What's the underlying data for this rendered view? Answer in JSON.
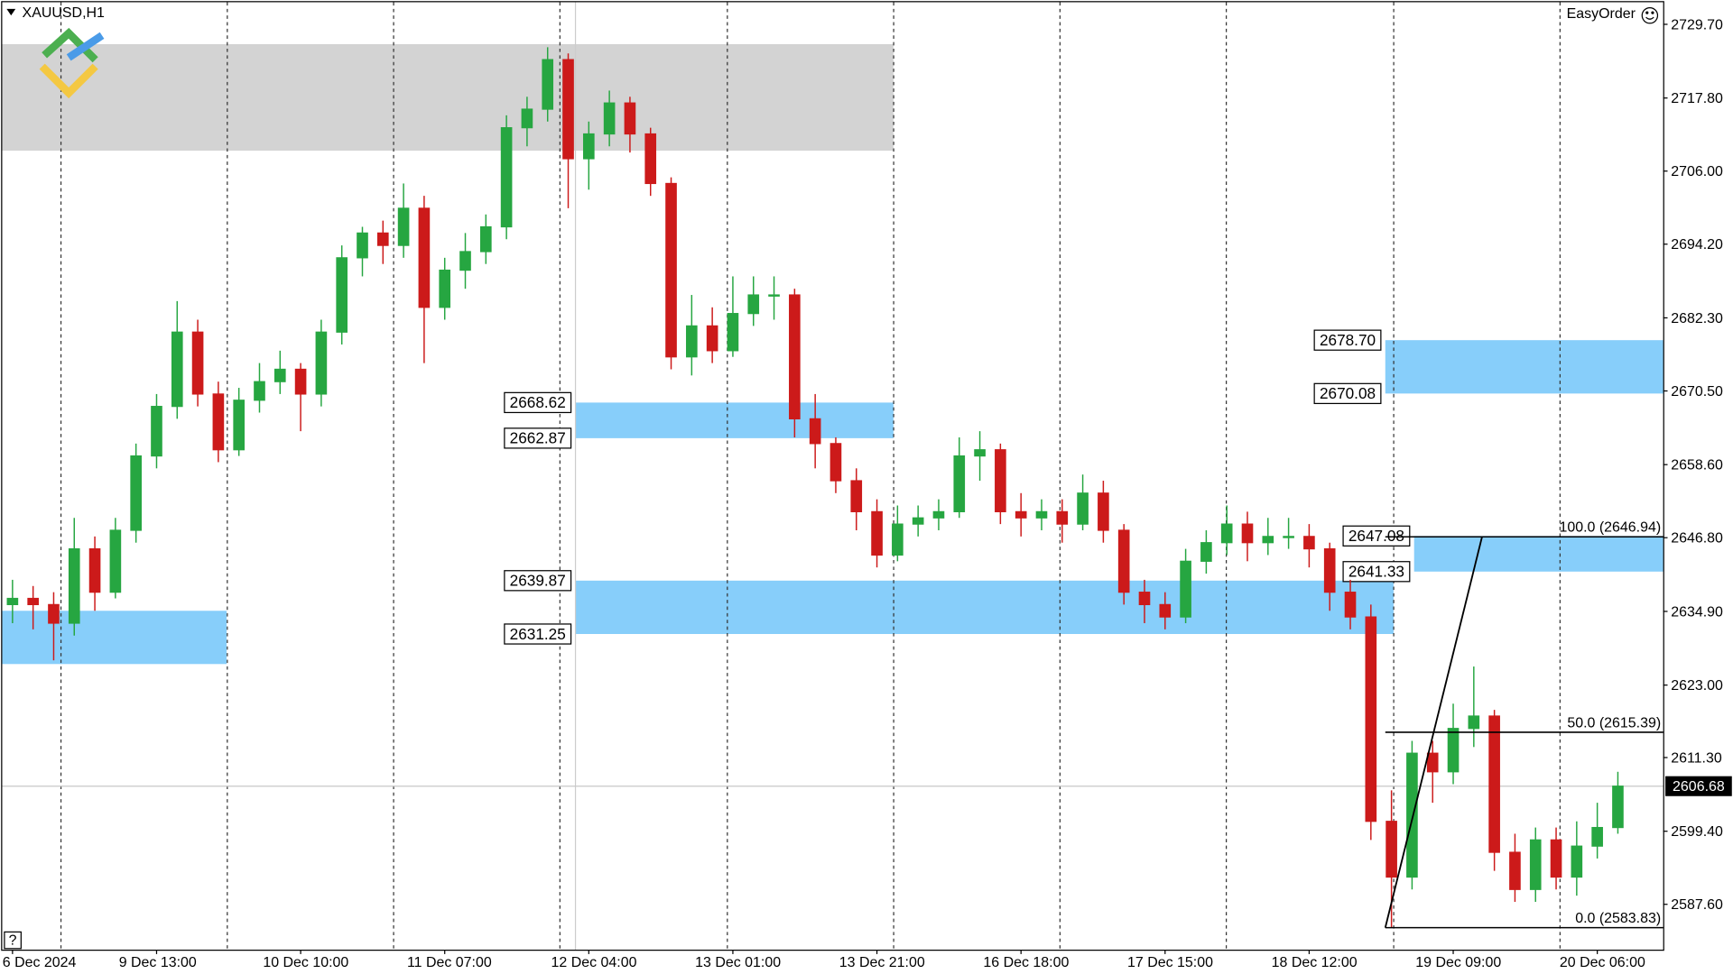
{
  "chart_data": {
    "type": "candlestick",
    "symbol": "XAUUSD,H1",
    "plugin": "EasyOrder",
    "help": "?",
    "up_color": "#26a641",
    "down_color": "#cc1a1a",
    "candles": [
      [
        2636,
        2640,
        2633,
        2637
      ],
      [
        2637,
        2639,
        2632,
        2636
      ],
      [
        2636,
        2638,
        2627,
        2633
      ],
      [
        2633,
        2650,
        2631,
        2645
      ],
      [
        2645,
        2647,
        2635,
        2638
      ],
      [
        2638,
        2650,
        2637,
        2648
      ],
      [
        2648,
        2662,
        2646,
        2660
      ],
      [
        2660,
        2670,
        2658,
        2668
      ],
      [
        2668,
        2685,
        2666,
        2680
      ],
      [
        2680,
        2682,
        2668,
        2670
      ],
      [
        2670,
        2672,
        2659,
        2661
      ],
      [
        2661,
        2671,
        2660,
        2669
      ],
      [
        2669,
        2675,
        2667,
        2672
      ],
      [
        2672,
        2677,
        2670,
        2674
      ],
      [
        2674,
        2675,
        2664,
        2670
      ],
      [
        2670,
        2682,
        2668,
        2680
      ],
      [
        2680,
        2694,
        2678,
        2692
      ],
      [
        2692,
        2697,
        2689,
        2696
      ],
      [
        2696,
        2698,
        2691,
        2694
      ],
      [
        2694,
        2704,
        2692,
        2700
      ],
      [
        2700,
        2702,
        2675,
        2684
      ],
      [
        2684,
        2692,
        2682,
        2690
      ],
      [
        2690,
        2696,
        2687,
        2693
      ],
      [
        2693,
        2699,
        2691,
        2697
      ],
      [
        2697,
        2715,
        2695,
        2713
      ],
      [
        2713,
        2718,
        2710,
        2716
      ],
      [
        2716,
        2726,
        2714,
        2724
      ],
      [
        2724,
        2725,
        2700,
        2708
      ],
      [
        2708,
        2714,
        2703,
        2712
      ],
      [
        2712,
        2719,
        2710,
        2717
      ],
      [
        2717,
        2718,
        2709,
        2712
      ],
      [
        2712,
        2713,
        2702,
        2704
      ],
      [
        2704,
        2705,
        2674,
        2676
      ],
      [
        2676,
        2686,
        2673,
        2681
      ],
      [
        2681,
        2684,
        2675,
        2677
      ],
      [
        2677,
        2689,
        2676,
        2683
      ],
      [
        2683,
        2689,
        2681,
        2686
      ],
      [
        2686,
        2689,
        2682,
        2686
      ],
      [
        2686,
        2687,
        2663,
        2666
      ],
      [
        2666,
        2670,
        2658,
        2662
      ],
      [
        2662,
        2663,
        2654,
        2656
      ],
      [
        2656,
        2658,
        2648,
        2651
      ],
      [
        2651,
        2653,
        2642,
        2644
      ],
      [
        2644,
        2652,
        2643,
        2649
      ],
      [
        2649,
        2652,
        2647,
        2650
      ],
      [
        2650,
        2653,
        2648,
        2651
      ],
      [
        2651,
        2663,
        2650,
        2660
      ],
      [
        2660,
        2664,
        2656,
        2661
      ],
      [
        2661,
        2662,
        2649,
        2651
      ],
      [
        2651,
        2654,
        2647,
        2650
      ],
      [
        2650,
        2653,
        2648,
        2651
      ],
      [
        2651,
        2653,
        2646,
        2649
      ],
      [
        2649,
        2657,
        2648,
        2654
      ],
      [
        2654,
        2656,
        2646,
        2648
      ],
      [
        2648,
        2649,
        2636,
        2638
      ],
      [
        2638,
        2640,
        2633,
        2636
      ],
      [
        2636,
        2638,
        2632,
        2634
      ],
      [
        2634,
        2645,
        2633,
        2643
      ],
      [
        2643,
        2648,
        2641,
        2646
      ],
      [
        2646,
        2652,
        2644,
        2649
      ],
      [
        2649,
        2651,
        2643,
        2646
      ],
      [
        2646,
        2650,
        2644,
        2647
      ],
      [
        2647,
        2650,
        2645,
        2647
      ],
      [
        2647,
        2649,
        2642,
        2645
      ],
      [
        2645,
        2646,
        2635,
        2638
      ],
      [
        2638,
        2640,
        2632,
        2634
      ],
      [
        2634,
        2636,
        2598,
        2601
      ],
      [
        2601,
        2606,
        2583.83,
        2592
      ],
      [
        2592,
        2614,
        2590,
        2612
      ],
      [
        2612,
        2614,
        2604,
        2609
      ],
      [
        2609,
        2620,
        2607,
        2616
      ],
      [
        2616,
        2626,
        2613,
        2618
      ],
      [
        2618,
        2619,
        2593,
        2596
      ],
      [
        2596,
        2599,
        2588,
        2590
      ],
      [
        2590,
        2600,
        2588,
        2598
      ],
      [
        2598,
        2600,
        2590,
        2592
      ],
      [
        2592,
        2601,
        2589,
        2597
      ],
      [
        2597,
        2604,
        2595,
        2600
      ],
      [
        2600,
        2609,
        2599,
        2606.68
      ]
    ],
    "ylim": [
      2580.28,
      2733.27
    ],
    "yticks": [
      {
        "value": 2729.7,
        "label": "2729.70"
      },
      {
        "value": 2717.8,
        "label": "2717.80"
      },
      {
        "value": 2706,
        "label": "2706.00"
      },
      {
        "value": 2694.2,
        "label": "2694.20"
      },
      {
        "value": 2682.3,
        "label": "2682.30"
      },
      {
        "value": 2670.5,
        "label": "2670.50"
      },
      {
        "value": 2658.6,
        "label": "2658.60"
      },
      {
        "value": 2646.8,
        "label": "2646.80"
      },
      {
        "value": 2634.9,
        "label": "2634.90"
      },
      {
        "value": 2623,
        "label": "2623.00"
      },
      {
        "value": 2611.3,
        "label": "2611.30"
      },
      {
        "value": 2599.4,
        "label": "2599.40"
      },
      {
        "value": 2587.6,
        "label": "2587.60"
      }
    ],
    "xlim": [
      -0.5,
      80.2
    ],
    "xticks": [
      {
        "value": 0,
        "label": "6 Dec 2024"
      },
      {
        "value": 7,
        "label": "9 Dec 13:00"
      },
      {
        "value": 14,
        "label": "10 Dec 10:00"
      },
      {
        "value": 21,
        "label": "11 Dec 07:00"
      },
      {
        "value": 28,
        "label": "12 Dec 04:00"
      },
      {
        "value": 35,
        "label": "13 Dec 01:00"
      },
      {
        "value": 42,
        "label": "13 Dec 21:00"
      },
      {
        "value": 49,
        "label": "16 Dec 18:00"
      },
      {
        "value": 56,
        "label": "17 Dec 15:00"
      },
      {
        "value": 63,
        "label": "18 Dec 12:00"
      },
      {
        "value": 70,
        "label": "19 Dec 09:00"
      },
      {
        "value": 77,
        "label": "20 Dec 06:00"
      }
    ],
    "last_price": 2606.68,
    "zones": [
      {
        "high": 2726.5,
        "low": 2709.3,
        "from": -0.5,
        "to": 42.8,
        "color": "#d3d3d3"
      },
      {
        "high": 2635,
        "low": 2626.4,
        "from": -0.5,
        "to": 10.4,
        "color": "#87cefa"
      },
      {
        "high": 2668.62,
        "low": 2662.87,
        "from": 27.35,
        "to": 42.8,
        "color": "#87cefa"
      },
      {
        "high": 2639.87,
        "low": 2631.25,
        "from": 27.35,
        "to": 67.1,
        "color": "#87cefa"
      },
      {
        "high": {
          "value": 2678.7,
          "label": "2678.70"
        },
        "low": 2670.08,
        "from": 66.7,
        "to": 80.2,
        "color": "#87cefa"
      },
      {
        "high": 2647.08,
        "low": 2641.33,
        "from": 68.1,
        "to": 80.2,
        "color": "#87cefa"
      }
    ],
    "fibonacci": {
      "from": 66.7,
      "to": 80.2,
      "levels": [
        {
          "value": 2646.94,
          "label": "100.0 (2646.94)"
        },
        {
          "value": 2615.39,
          "label": "50.0 (2615.39)"
        },
        {
          "value": 2583.83,
          "label": "0.0 (2583.83)"
        }
      ]
    },
    "trend_line": {
      "x": [
        66.7,
        71.4
      ],
      "y": [
        2583.83,
        2646.94
      ]
    }
  }
}
